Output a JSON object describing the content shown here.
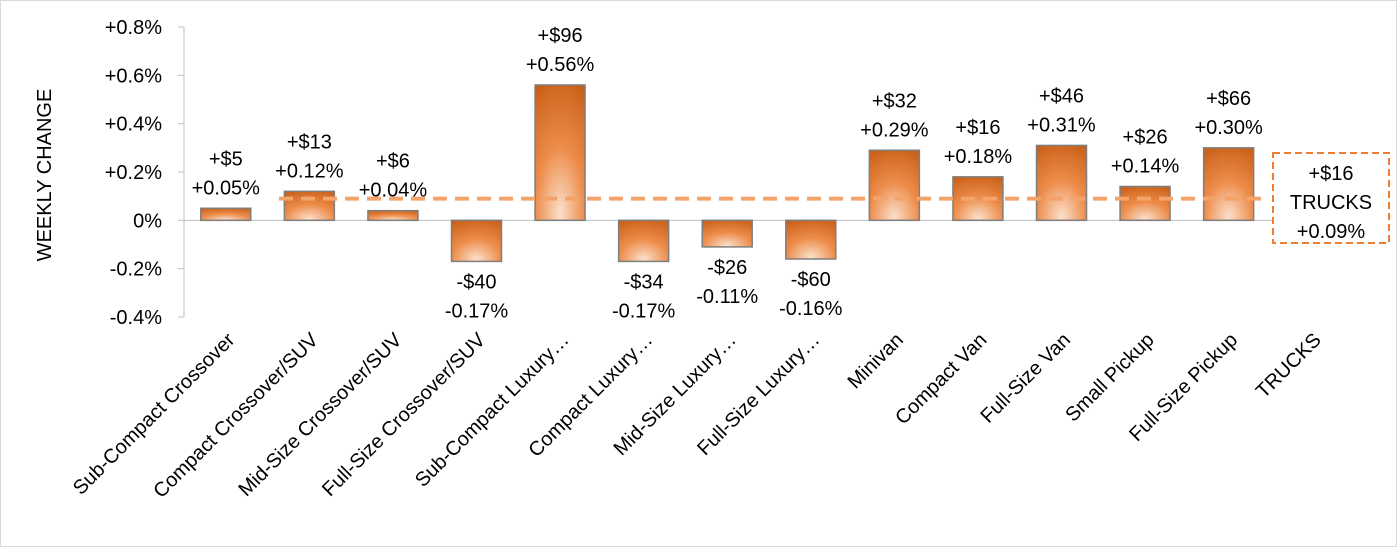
{
  "chart_data": {
    "type": "bar",
    "ylabel": "WEEKLY CHANGE",
    "ylim": [
      -0.4,
      0.8
    ],
    "y_ticks": [
      "+0.8%",
      "+0.6%",
      "+0.4%",
      "+0.2%",
      "0%",
      "-0.2%",
      "-0.4%"
    ],
    "categories": [
      "Sub-Compact Crossover",
      "Compact Crossover/SUV",
      "Mid-Size Crossover/SUV",
      "Full-Size Crossover/SUV",
      "Sub-Compact Luxury…",
      "Compact Luxury…",
      "Mid-Size Luxury…",
      "Full-Size Luxury…",
      "Minivan",
      "Compact Van",
      "Full-Size Van",
      "Small Pickup",
      "Full-Size Pickup",
      "TRUCKS"
    ],
    "values": [
      0.05,
      0.12,
      0.04,
      -0.17,
      0.56,
      -0.17,
      -0.11,
      -0.16,
      0.29,
      0.18,
      0.31,
      0.14,
      0.3,
      null
    ],
    "dollar_labels": [
      "+$5",
      "+$13",
      "+$6",
      "-$40",
      "+$96",
      "-$34",
      "-$26",
      "-$60",
      "+$32",
      "+$16",
      "+$46",
      "+$26",
      "+$66",
      ""
    ],
    "percent_labels": [
      "+0.05%",
      "+0.12%",
      "+0.04%",
      "-0.17%",
      "+0.56%",
      "-0.17%",
      "-0.11%",
      "-0.16%",
      "+0.29%",
      "+0.18%",
      "+0.31%",
      "+0.14%",
      "+0.30%",
      ""
    ],
    "reference_line": {
      "value": 0.09,
      "dollar": "+$16",
      "name": "TRUCKS",
      "percent": "+0.09%"
    },
    "grid": false,
    "colors": {
      "bar_dark": "#c55a11",
      "bar_light": "#f8cbad",
      "bar_mid": "#ed7d31",
      "bar_border": "#7f7f7f",
      "reference": "#f4a46a",
      "axis": "#bfbfbf"
    }
  }
}
